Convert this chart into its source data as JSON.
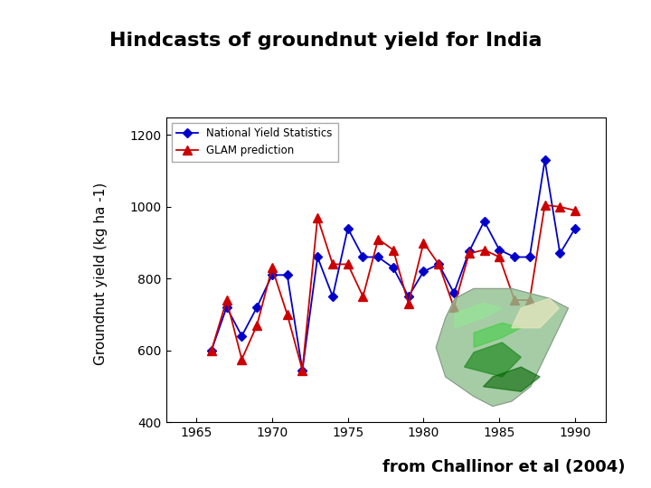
{
  "title": "Hindcasts of groundnut yield for India",
  "title_fontsize": 16,
  "title_fontweight": "bold",
  "subtitle_text": "from Challinor et al (2004)",
  "subtitle_fontsize": 13,
  "subtitle_fontweight": "bold",
  "subtitle_color": "#000000",
  "ylabel": "Groundnut yield (kg ha -1)",
  "ylabel_fontsize": 11,
  "xlim": [
    1963,
    1992
  ],
  "ylim": [
    400,
    1250
  ],
  "yticks": [
    400,
    600,
    800,
    1000,
    1200
  ],
  "xticks": [
    1965,
    1970,
    1975,
    1980,
    1985,
    1990
  ],
  "page_bg": "#ffffff",
  "yellow_bg": "#ffffcc",
  "plot_bg": "#ffffff",
  "olive_line_color": "#8cb320",
  "national_yield_color": "#0000cc",
  "glam_color": "#cc0000",
  "years_national": [
    1966,
    1967,
    1968,
    1969,
    1970,
    1971,
    1972,
    1973,
    1974,
    1975,
    1976,
    1977,
    1978,
    1979,
    1980,
    1981,
    1982,
    1983,
    1984,
    1985,
    1986,
    1987,
    1988,
    1989,
    1990
  ],
  "national_yield": [
    600,
    720,
    640,
    720,
    810,
    810,
    545,
    860,
    750,
    940,
    860,
    860,
    830,
    750,
    820,
    840,
    760,
    875,
    960,
    880,
    860,
    860,
    1130,
    870,
    940
  ],
  "years_glam": [
    1966,
    1967,
    1968,
    1969,
    1970,
    1971,
    1972,
    1973,
    1974,
    1975,
    1976,
    1977,
    1978,
    1979,
    1980,
    1981,
    1982,
    1983,
    1984,
    1985,
    1986,
    1987,
    1988,
    1989,
    1990
  ],
  "glam_yield": [
    600,
    740,
    575,
    670,
    830,
    700,
    545,
    970,
    840,
    840,
    750,
    910,
    880,
    730,
    900,
    840,
    720,
    870,
    880,
    860,
    740,
    740,
    1005,
    1000,
    990
  ],
  "legend_label_national": "National Yield Statistics",
  "legend_label_glam": "GLAM prediction"
}
